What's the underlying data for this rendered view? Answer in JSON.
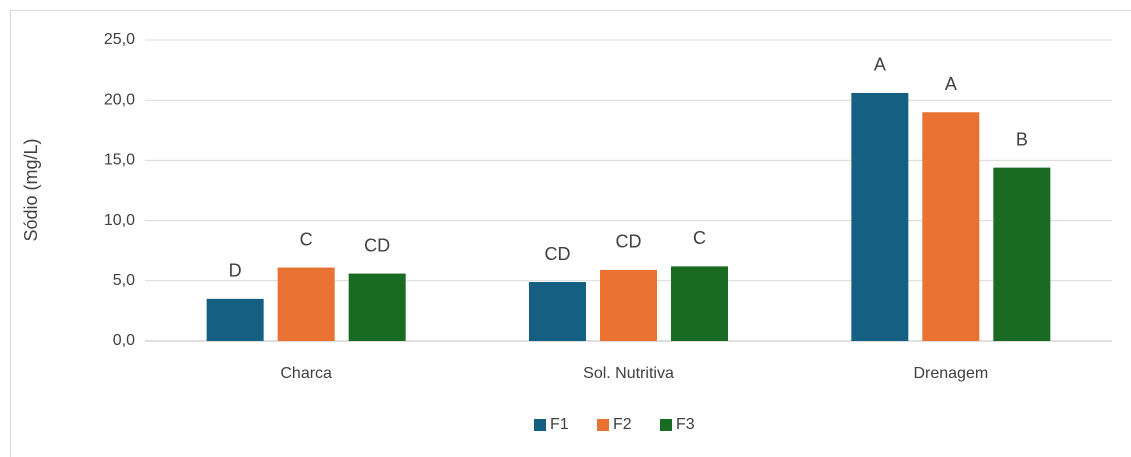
{
  "chart_data": {
    "type": "bar",
    "y_label": "Sódio (mg/L)",
    "categories": [
      "Charca",
      "Sol. Nutritiva",
      "Drenagem"
    ],
    "series": [
      {
        "name": "F1",
        "color": "#156082",
        "values": [
          3.5,
          4.9,
          20.6
        ],
        "annotations": [
          "D",
          "CD",
          "A"
        ]
      },
      {
        "name": "F2",
        "color": "#e97132",
        "values": [
          6.1,
          5.9,
          19.0
        ],
        "annotations": [
          "C",
          "CD",
          "A"
        ]
      },
      {
        "name": "F3",
        "color": "#196b24",
        "values": [
          5.6,
          6.2,
          14.4
        ],
        "annotations": [
          "CD",
          "C",
          "B"
        ]
      }
    ],
    "ylim": [
      0,
      25
    ],
    "yticks": [
      {
        "value": 0,
        "label": "0,0"
      },
      {
        "value": 5,
        "label": "5,0"
      },
      {
        "value": 10,
        "label": "10,0"
      },
      {
        "value": 15,
        "label": "15,0"
      },
      {
        "value": 20,
        "label": "20,0"
      },
      {
        "value": 25,
        "label": "25,0"
      }
    ],
    "grid": true,
    "legend": "bottom"
  }
}
